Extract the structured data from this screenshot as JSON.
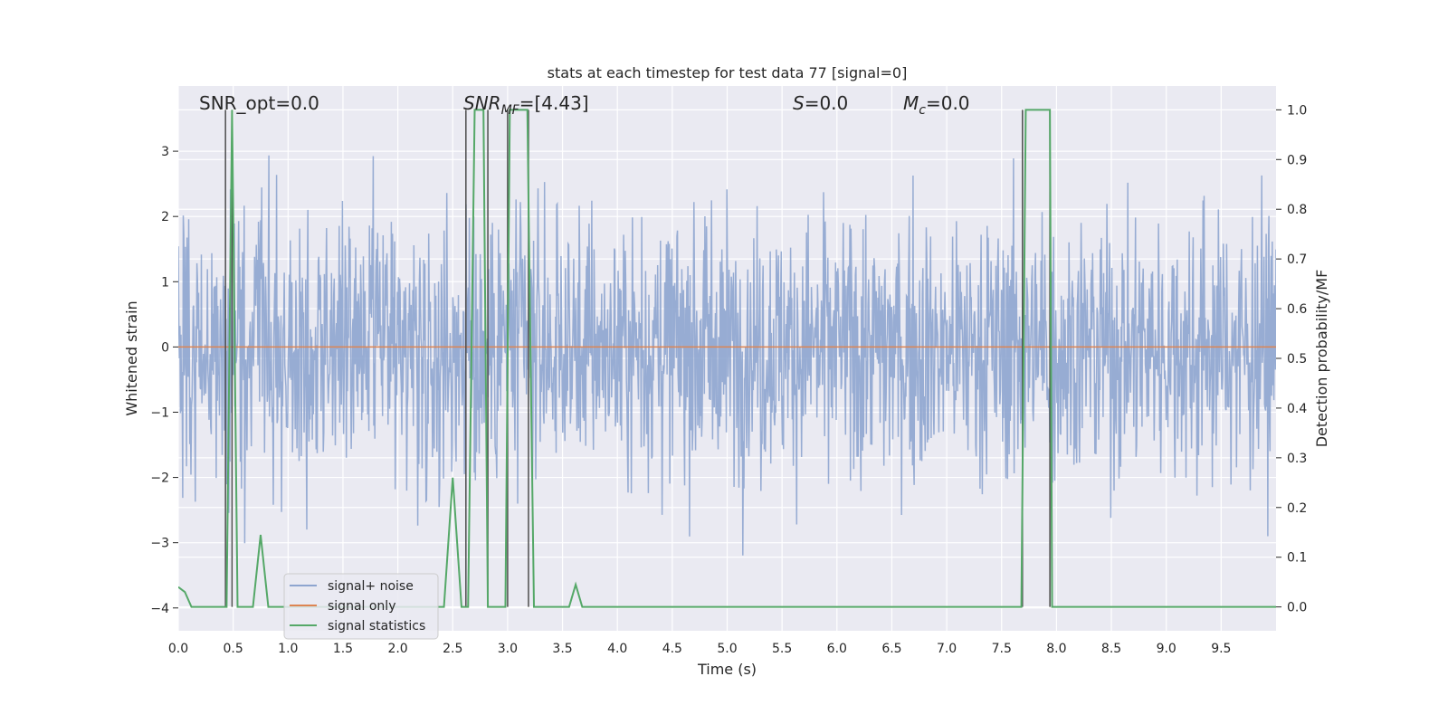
{
  "chart_data": {
    "type": "line",
    "title": "stats at each timestep for test data 77 [signal=0]",
    "xlabel": "Time (s)",
    "ylabel": "Whitened strain",
    "y2label": "Detection probability/MF",
    "xlim": [
      0.0,
      10.0
    ],
    "ylim": [
      -4.35,
      4.0
    ],
    "y2lim": [
      -0.048,
      1.048
    ],
    "x_ticks": [
      "0.0",
      "0.5",
      "1.0",
      "1.5",
      "2.0",
      "2.5",
      "3.0",
      "3.5",
      "4.0",
      "4.5",
      "5.0",
      "5.5",
      "6.0",
      "6.5",
      "7.0",
      "7.5",
      "8.0",
      "8.5",
      "9.0",
      "9.5"
    ],
    "y_ticks": [
      "3",
      "2",
      "1",
      "0",
      "−1",
      "−2",
      "−3",
      "−4"
    ],
    "y2_ticks": [
      "1.0",
      "0.9",
      "0.8",
      "0.7",
      "0.6",
      "0.5",
      "0.4",
      "0.3",
      "0.2",
      "0.1",
      "0.0"
    ],
    "grid": true,
    "legend_position": "lower-left",
    "annotations": {
      "snr_opt": "SNR_opt=0.0",
      "snr_mf_sym": "SNR",
      "snr_mf_sub": "MF",
      "snr_mf_val": "=[4.43]",
      "s_sym": "S",
      "s_val": "=0.0",
      "mc_sym": "M",
      "mc_sub": "c",
      "mc_val": "=0.0"
    },
    "series": [
      {
        "name": "signal+ noise",
        "color": "#8ea5cf",
        "kind": "noise",
        "noise_sigma": 1.0,
        "noise_ylim": [
          -3.95,
          3.6
        ]
      },
      {
        "name": "signal only",
        "color": "#dd8452",
        "kind": "line",
        "x": [
          0.0,
          10.0
        ],
        "y": [
          0.0,
          0.0
        ]
      },
      {
        "name": "signal statistics",
        "color": "#55a868",
        "kind": "line",
        "axis": "right",
        "x": [
          0.0,
          0.06,
          0.12,
          0.18,
          0.42,
          0.44,
          0.49,
          0.54,
          0.56,
          0.68,
          0.75,
          0.82,
          1.0,
          2.0,
          2.42,
          2.5,
          2.58,
          2.64,
          2.7,
          2.78,
          2.82,
          2.86,
          2.98,
          3.02,
          3.06,
          3.18,
          3.2,
          3.24,
          3.3,
          3.56,
          3.62,
          3.68,
          4.0,
          5.0,
          6.0,
          7.0,
          7.68,
          7.72,
          7.76,
          7.94,
          7.96,
          8.0,
          9.0,
          10.0
        ],
        "y": [
          0.04,
          0.03,
          0.0,
          0.0,
          0.0,
          0.0,
          1.0,
          0.0,
          0.0,
          0.0,
          0.145,
          0.0,
          0.0,
          0.0,
          0.0,
          0.26,
          0.0,
          0.0,
          1.0,
          1.0,
          0.0,
          0.0,
          0.0,
          1.0,
          1.0,
          1.0,
          0.65,
          0.0,
          0.0,
          0.0,
          0.045,
          0.0,
          0.0,
          0.0,
          0.0,
          0.0,
          0.0,
          1.0,
          1.0,
          1.0,
          0.0,
          0.0,
          0.0,
          0.0
        ]
      }
    ],
    "vlines": {
      "color": "#4d4d4d",
      "x": [
        0.43,
        0.49,
        2.62,
        2.82,
        3.0,
        3.19,
        7.69,
        7.94
      ]
    }
  }
}
